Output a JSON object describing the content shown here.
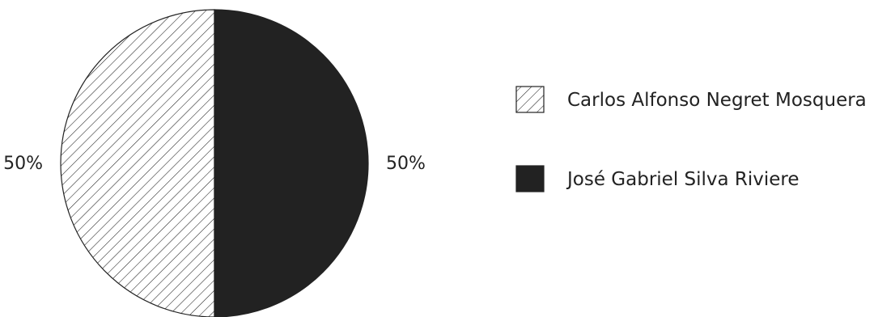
{
  "chart_data": {
    "type": "pie",
    "title": "",
    "slices": [
      {
        "label": "Carlos Alfonso Negret Mosquera",
        "value": 50,
        "value_label": "50%",
        "fill": "hatched",
        "color": "#ffffff",
        "stroke": "#222222"
      },
      {
        "label": "José Gabriel Silva Riviere",
        "value": 50,
        "value_label": "50%",
        "fill": "solid",
        "color": "#222222",
        "stroke": "#222222"
      }
    ],
    "legend_position": "right"
  }
}
